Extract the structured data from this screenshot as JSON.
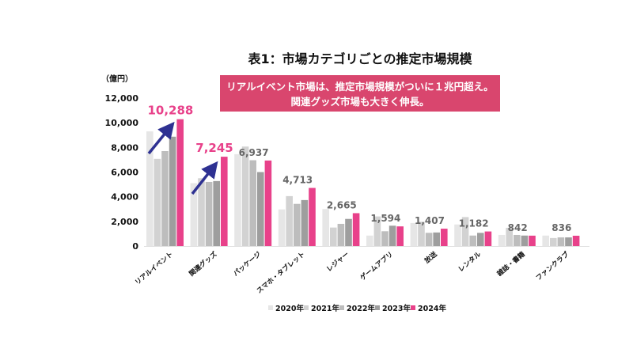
{
  "chart_data": {
    "type": "bar",
    "title": "表1：市場カテゴリごとの推定市場規模",
    "callout": [
      "リアルイベント市場は、推定市場規模がついに１兆円超え。",
      "関連グッズ市場も大きく伸長。"
    ],
    "ylabel": "（億円）",
    "ylim": [
      0,
      12000
    ],
    "yticks": [
      "0",
      "2,000",
      "4,000",
      "6,000",
      "8,000",
      "10,000",
      "12,000"
    ],
    "ytick_values": [
      0,
      2000,
      4000,
      6000,
      8000,
      10000,
      12000
    ],
    "grid": false,
    "legend_position": "bottom",
    "categories": [
      "リアルイベント",
      "関連グッズ",
      "パッケージ",
      "スマホ・タブレット",
      "レジャー",
      "ゲームアプリ",
      "放送",
      "レンタル",
      "雑誌・書籍",
      "ファンクラブ"
    ],
    "series": [
      {
        "name": "2020年",
        "color": "#e6e6e6",
        "values": [
          9300,
          5100,
          7450,
          2970,
          3000,
          850,
          1870,
          1750,
          900,
          850
        ]
      },
      {
        "name": "2021年",
        "color": "#d2d2d2",
        "values": [
          7070,
          5500,
          8070,
          4050,
          1500,
          2400,
          1970,
          2350,
          1480,
          650
        ]
      },
      {
        "name": "2022年",
        "color": "#bdbdbd",
        "values": [
          7700,
          5200,
          6960,
          3420,
          1800,
          1200,
          1070,
          850,
          900,
          700
        ]
      },
      {
        "name": "2023年",
        "color": "#9e9e9e",
        "values": [
          8870,
          5270,
          6000,
          3730,
          2200,
          1650,
          1100,
          1070,
          850,
          700
        ]
      },
      {
        "name": "2024年",
        "color": "#e8418a",
        "values": [
          10288,
          7245,
          6937,
          4713,
          2665,
          1594,
          1407,
          1182,
          842,
          836
        ]
      }
    ],
    "data_labels": [
      "10,288",
      "7,245",
      "6,937",
      "4,713",
      "2,665",
      "1,594",
      "1,407",
      "1,182",
      "842",
      "836"
    ],
    "highlight_labels": [
      0,
      1
    ],
    "highlight_color": "#e8418a",
    "label_color": "#666666",
    "callout_color": "#d9466e",
    "arrow_color": "#2e3192"
  }
}
